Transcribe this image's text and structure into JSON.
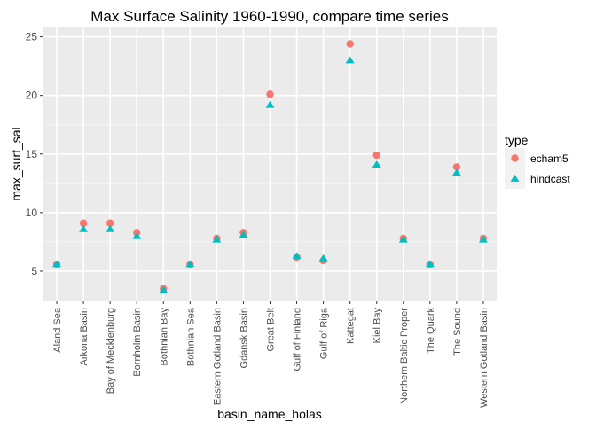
{
  "chart_data": {
    "type": "scatter",
    "title": "Max Surface Salinity 1960-1990, compare time series",
    "xlabel": "basin_name_holas",
    "ylabel": "max_surf_sal",
    "ylim": [
      2.5,
      25.8
    ],
    "yticks": [
      5,
      10,
      15,
      20,
      25
    ],
    "grid": true,
    "legend_position": "right",
    "legend_title": "type",
    "categories": [
      "Aland Sea",
      "Arkona Basin",
      "Bay of Mecklenburg",
      "Bornholm Basin",
      "Bothnian Bay",
      "Bothnian Sea",
      "Eastern Gotland Basin",
      "Gdansk Basin",
      "Great Belt",
      "Gulf of Finland",
      "Gulf of Riga",
      "Kattegat",
      "Kiel Bay",
      "Northern Baltic Proper",
      "The Quark",
      "The Sound",
      "Western Gotland Basin"
    ],
    "series": [
      {
        "name": "echam5",
        "marker": "circle",
        "color": "#F8766D",
        "values": [
          5.6,
          9.1,
          9.1,
          8.3,
          3.5,
          5.6,
          7.8,
          8.3,
          20.1,
          6.2,
          5.9,
          24.4,
          14.9,
          7.8,
          5.6,
          13.9,
          7.8
        ]
      },
      {
        "name": "hindcast",
        "marker": "triangle",
        "color": "#00BFC4",
        "values": [
          5.6,
          8.6,
          8.6,
          8.0,
          3.4,
          5.6,
          7.7,
          8.1,
          19.2,
          6.3,
          6.1,
          23.0,
          14.1,
          7.7,
          5.6,
          13.4,
          7.7
        ]
      }
    ]
  }
}
